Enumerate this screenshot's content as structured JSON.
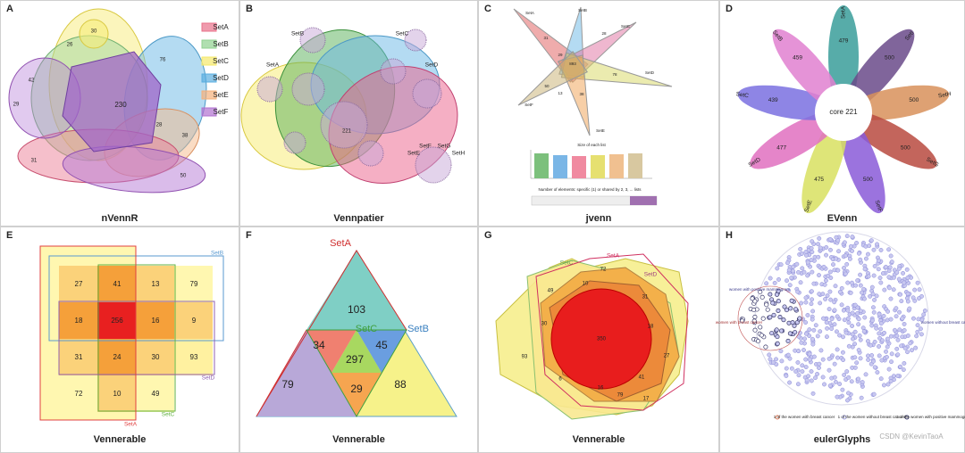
{
  "panels": [
    {
      "letter": "A",
      "title": "nVennR",
      "legend": [
        "SetA",
        "SetB",
        "SetC",
        "SetD",
        "SetE",
        "SetF"
      ],
      "numbers": [
        30,
        26,
        76,
        42,
        29,
        230,
        28,
        38,
        31,
        50
      ]
    },
    {
      "letter": "B",
      "title": "Vennpatier",
      "sets": [
        "SetA",
        "SetB",
        "SetC",
        "SetD",
        "SetE",
        "SetF",
        "SetG",
        "SetH"
      ],
      "numbers": [
        221
      ]
    },
    {
      "letter": "C",
      "title": "jvenn",
      "sets": [
        "SetA",
        "SetB",
        "SetC",
        "SetD",
        "SetE",
        "SetF"
      ],
      "numbers": [
        31,
        29,
        28,
        893,
        78,
        50,
        13,
        38
      ],
      "chart_title": "Size of each list",
      "axis_caption": "Number of elements: specific (1) or shared by 2, 3, ... lists"
    },
    {
      "letter": "D",
      "title": "EVenn",
      "sets": [
        "SetA",
        "SetI",
        "SetH",
        "SetG",
        "SetF",
        "SetE",
        "SetD",
        "SetC",
        "SetB"
      ],
      "numbers": [
        479,
        500,
        500,
        500,
        500,
        475,
        477,
        439,
        459
      ],
      "core": "core 221"
    },
    {
      "letter": "E",
      "title": "Vennerable",
      "sets": [
        "SetB",
        "SetD",
        "SetC",
        "SetA"
      ],
      "cells": [
        [
          27,
          41,
          13,
          79
        ],
        [
          18,
          256,
          16,
          9
        ],
        [
          31,
          24,
          30,
          93
        ],
        [
          72,
          10,
          49
        ]
      ]
    },
    {
      "letter": "F",
      "title": "Vennerable",
      "sets": [
        "SetA",
        "SetB",
        "SetC"
      ],
      "numbers": [
        103,
        34,
        45,
        297,
        79,
        29,
        88
      ]
    },
    {
      "letter": "G",
      "title": "Vennerable",
      "sets": [
        "SetA",
        "SetC",
        "SetD"
      ],
      "numbers": [
        72,
        49,
        10,
        31,
        30,
        18,
        350,
        93,
        27,
        6,
        16,
        41,
        79,
        17
      ]
    },
    {
      "letter": "H",
      "title": "eulerGlyphs",
      "labels": [
        "women with positive mammogram",
        "women with breast cancer",
        "women without breast cancer"
      ],
      "legend": [
        "1 of the women with breast cancer",
        "1 of the women without breast cancer",
        "1 of the women with positive mammogram"
      ]
    }
  ],
  "watermark": "CSDN @KevinTaoA"
}
